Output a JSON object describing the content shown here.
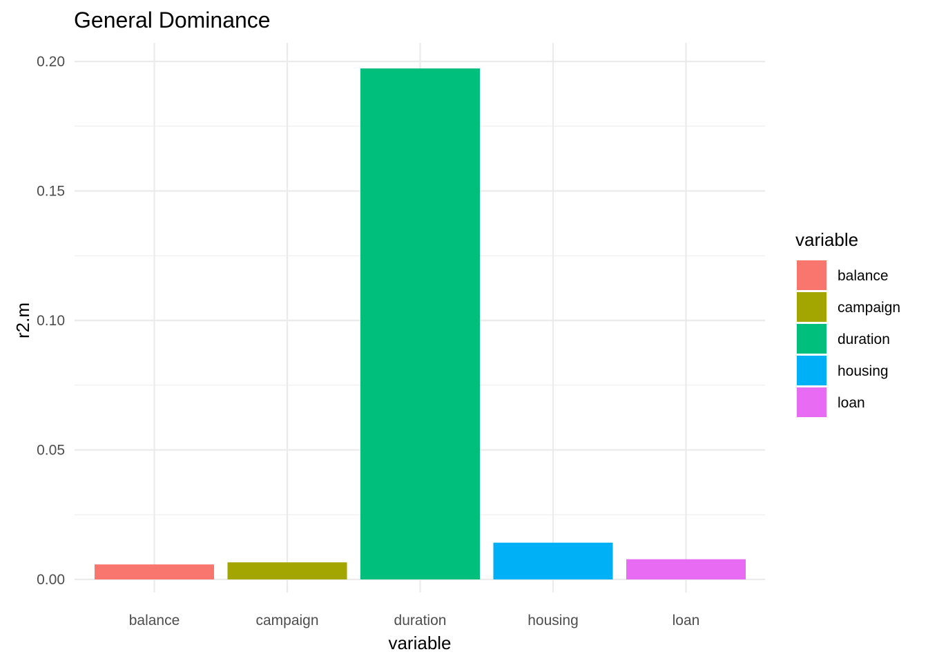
{
  "chart_data": {
    "type": "bar",
    "title": "General Dominance",
    "xlabel": "variable",
    "ylabel": "r2.m",
    "categories": [
      "balance",
      "campaign",
      "duration",
      "housing",
      "loan"
    ],
    "values": [
      0.0058,
      0.0066,
      0.1973,
      0.0142,
      0.0078
    ],
    "colors": [
      "#F8766D",
      "#A3A500",
      "#00BF7D",
      "#00B0F6",
      "#E76BF3"
    ],
    "ylim": [
      0,
      0.2
    ],
    "yticks": [
      0.0,
      0.05,
      0.1,
      0.15,
      0.2
    ],
    "ytick_labels": [
      "0.00",
      "0.05",
      "0.10",
      "0.15",
      "0.20"
    ],
    "grid": true,
    "legend": {
      "title": "variable",
      "position": "right",
      "entries": [
        "balance",
        "campaign",
        "duration",
        "housing",
        "loan"
      ]
    }
  }
}
